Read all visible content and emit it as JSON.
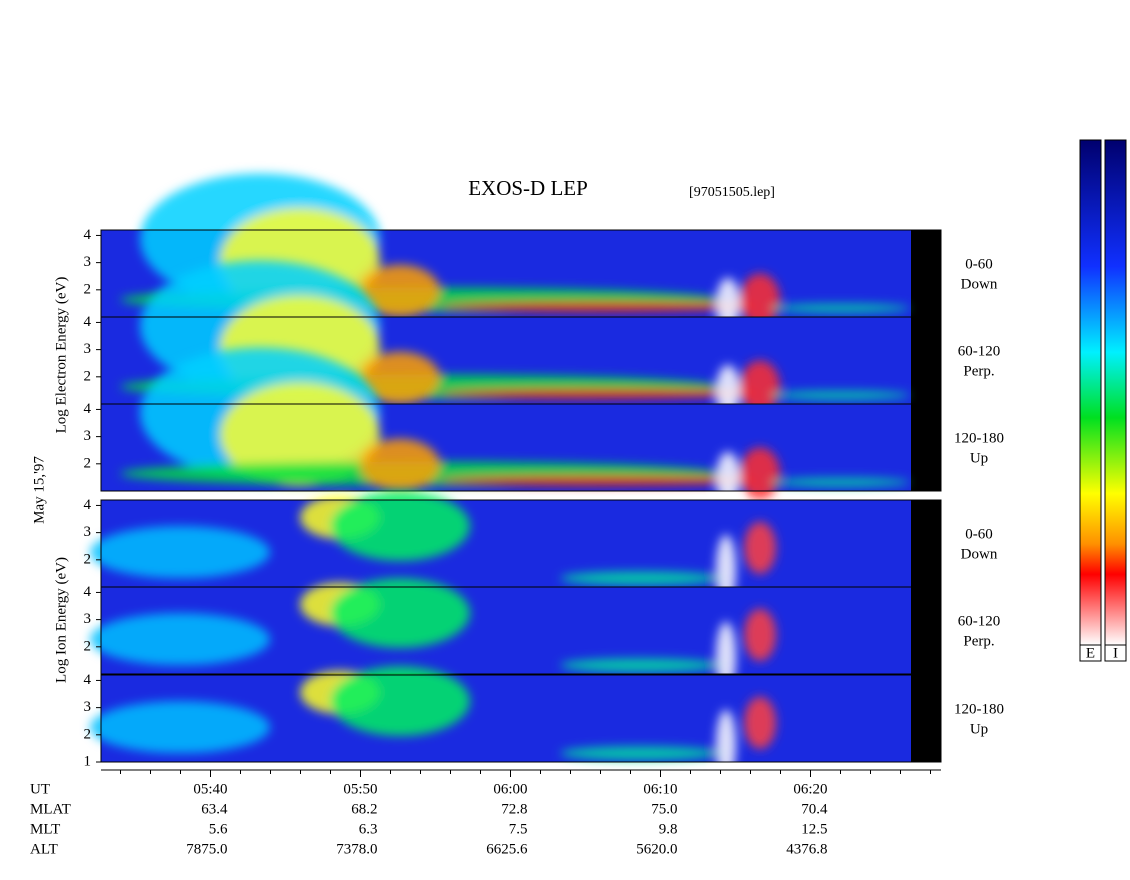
{
  "chart_data": {
    "type": "spectrogram",
    "title": "EXOS-D LEP",
    "file": "[97051505.lep]",
    "date": "May 15,'97",
    "groups": [
      {
        "label": "Log Electron Energy (eV)",
        "panels": [
          {
            "labels": [
              "0-60",
              "Down"
            ],
            "yticks": [
              2,
              3,
              4
            ]
          },
          {
            "labels": [
              "60-120",
              "Perp."
            ],
            "yticks": [
              2,
              3,
              4
            ]
          },
          {
            "labels": [
              "120-180",
              "Up"
            ],
            "yticks": [
              2,
              3,
              4
            ]
          }
        ]
      },
      {
        "label": "Log Ion Energy (eV)",
        "panels": [
          {
            "labels": [
              "0-60",
              "Down"
            ],
            "yticks": [
              2,
              3,
              4
            ]
          },
          {
            "labels": [
              "60-120",
              "Perp."
            ],
            "yticks": [
              2,
              3,
              4
            ]
          },
          {
            "labels": [
              "120-180",
              "Up"
            ],
            "yticks": [
              1,
              2,
              3,
              4
            ]
          }
        ]
      }
    ],
    "ylim": [
      1,
      4.2
    ],
    "xlim": [
      332.7,
      388.7
    ],
    "xticks": [
      {
        "value": 340,
        "label": "05:40"
      },
      {
        "value": 350,
        "label": "05:50"
      },
      {
        "value": 360,
        "label": "06:00"
      },
      {
        "value": 370,
        "label": "06:10"
      },
      {
        "value": 380,
        "label": "06:20"
      }
    ],
    "xminorticks": [
      334,
      336,
      338,
      342,
      344,
      346,
      348,
      352,
      354,
      356,
      358,
      362,
      364,
      366,
      368,
      372,
      374,
      376,
      378,
      382,
      384,
      386,
      388
    ],
    "ephemeris": {
      "row_labels": [
        "UT",
        "MLAT",
        "MLT",
        "ALT"
      ],
      "rows": [
        [
          "63.4",
          "68.2",
          "72.8",
          "75.0",
          "70.4"
        ],
        [
          "5.6",
          "6.3",
          "7.5",
          "9.8",
          "12.5"
        ],
        [
          "7875.0",
          "7378.0",
          "6625.6",
          "5620.0",
          "4376.8"
        ]
      ]
    },
    "colorbar_labels": [
      "E",
      "I"
    ]
  }
}
